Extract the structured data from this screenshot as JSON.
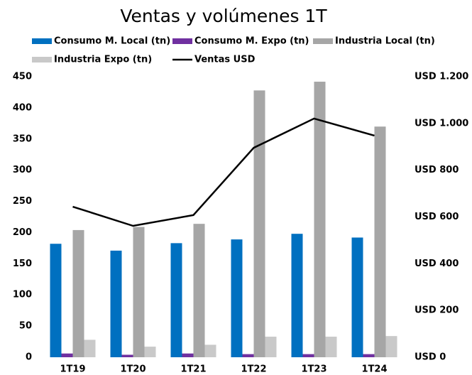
{
  "chart_data": {
    "type": "bar",
    "title": "Ventas y volúmenes 1T",
    "categories": [
      "1T19",
      "1T20",
      "1T21",
      "1T22",
      "1T23",
      "1T24"
    ],
    "series": [
      {
        "name": "Consumo M. Local (tn)",
        "color": "#0070c0",
        "values": [
          182,
          171,
          183,
          189,
          198,
          192
        ]
      },
      {
        "name": "Consumo M. Expo (tn)",
        "color": "#7030a0",
        "values": [
          6,
          4,
          6,
          5,
          5,
          5
        ]
      },
      {
        "name": "Industria Local (tn)",
        "color": "#a6a6a6",
        "values": [
          204,
          209,
          214,
          428,
          442,
          370
        ]
      },
      {
        "name": "Industria Expo (tn)",
        "color": "#c9c9c9",
        "values": [
          28,
          17,
          20,
          33,
          33,
          34
        ]
      },
      {
        "name": "Ventas USD",
        "color": "#000000",
        "type": "line",
        "axis": "y2",
        "values": [
          644,
          562,
          608,
          896,
          1021,
          948
        ]
      }
    ],
    "ylim": [
      0,
      450
    ],
    "yticks": [
      0,
      50,
      100,
      150,
      200,
      250,
      300,
      350,
      400,
      450
    ],
    "y2lim": [
      0,
      1200
    ],
    "y2ticks": [
      {
        "value": 0,
        "label": "USD 0"
      },
      {
        "value": 200,
        "label": "USD 200"
      },
      {
        "value": 400,
        "label": "USD 400"
      },
      {
        "value": 600,
        "label": "USD 600"
      },
      {
        "value": 800,
        "label": "USD 800"
      },
      {
        "value": 1000,
        "label": "USD 1.000"
      },
      {
        "value": 1200,
        "label": "USD 1.200"
      }
    ],
    "grid": false
  }
}
